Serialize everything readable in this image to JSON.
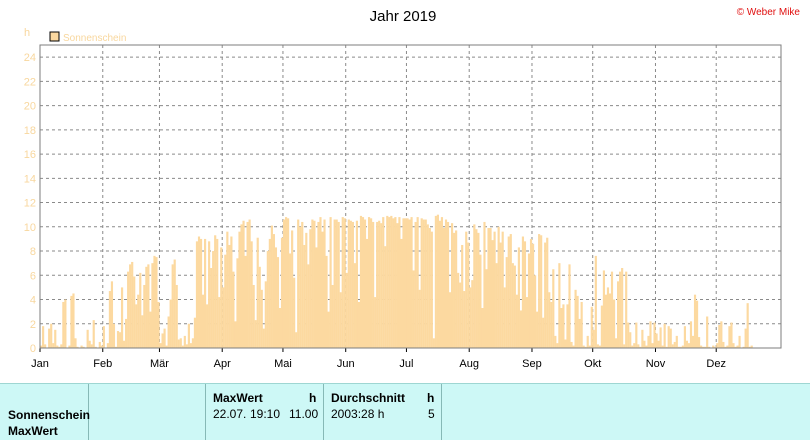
{
  "chart_data": {
    "type": "bar",
    "title": "Jahr 2019",
    "ylabel": "h",
    "credit": "© Weber Mike",
    "legend": {
      "position": "top-left",
      "entries": [
        "Sonnenschein"
      ]
    },
    "ylim": [
      0,
      25
    ],
    "yticks": [
      0,
      2,
      4,
      6,
      8,
      10,
      12,
      14,
      16,
      18,
      20,
      22,
      24
    ],
    "month_labels": [
      "Jan",
      "Feb",
      "Mär",
      "Apr",
      "Mai",
      "Jun",
      "Jul",
      "Aug",
      "Sep",
      "Okt",
      "Nov",
      "Dez"
    ],
    "grid": true,
    "series": [
      {
        "name": "Sonnenschein",
        "color": "#fcd9a0",
        "values": [
          0.2,
          1.8,
          0.3,
          0.0,
          1.6,
          2.0,
          0.4,
          1.5,
          0.2,
          0.1,
          0.3,
          3.8,
          4.0,
          0.0,
          0.2,
          4.3,
          4.5,
          0.8,
          0.1,
          0.0,
          0.2,
          0.1,
          0.0,
          1.5,
          0.6,
          0.3,
          2.3,
          0.1,
          0.0,
          0.5,
          0.2,
          1.8,
          0.0,
          0.4,
          4.7,
          5.5,
          2.0,
          0.1,
          1.4,
          1.3,
          5.0,
          0.6,
          2.4,
          6.3,
          6.9,
          7.1,
          5.9,
          3.6,
          4.4,
          6.2,
          2.7,
          5.2,
          6.7,
          6.9,
          3.0,
          7.0,
          7.6,
          7.5,
          3.8,
          0.4,
          1.2,
          1.6,
          0.2,
          2.6,
          4.0,
          6.9,
          7.3,
          5.2,
          0.7,
          0.8,
          0.2,
          1.0,
          0.3,
          2.0,
          0.4,
          0.8,
          2.5,
          8.8,
          9.2,
          9.0,
          4.4,
          9.0,
          3.6,
          8.8,
          6.6,
          8.0,
          9.3,
          9.0,
          4.2,
          8.3,
          5.0,
          7.7,
          9.6,
          8.5,
          9.2,
          6.3,
          2.2,
          7.4,
          9.6,
          10.2,
          10.5,
          7.6,
          10.4,
          10.6,
          8.8,
          5.2,
          2.3,
          9.1,
          6.7,
          4.8,
          1.6,
          5.5,
          8.0,
          9.0,
          10.1,
          9.4,
          8.3,
          7.5,
          3.3,
          9.1,
          10.6,
          10.8,
          10.7,
          7.8,
          9.7,
          5.8,
          1.3,
          10.6,
          10.0,
          10.4,
          8.5,
          9.5,
          6.9,
          9.8,
          10.6,
          10.5,
          8.3,
          10.4,
          10.8,
          9.6,
          10.6,
          7.6,
          3.0,
          10.8,
          5.2,
          10.6,
          10.6,
          10.4,
          4.6,
          10.8,
          10.7,
          6.2,
          10.6,
          10.5,
          10.4,
          7.0,
          10.5,
          3.8,
          10.9,
          10.8,
          10.6,
          9.0,
          10.8,
          10.7,
          10.4,
          4.2,
          10.4,
          10.5,
          10.3,
          10.8,
          8.4,
          10.9,
          10.8,
          10.9,
          10.7,
          10.8,
          10.3,
          10.8,
          9.0,
          10.7,
          10.7,
          10.7,
          10.6,
          10.8,
          6.4,
          10.4,
          10.8,
          4.8,
          10.7,
          10.6,
          10.6,
          10.2,
          9.9,
          9.6,
          0.8,
          10.9,
          11.0,
          10.5,
          10.8,
          9.9,
          10.6,
          10.4,
          4.6,
          10.3,
          9.5,
          9.7,
          6.2,
          5.4,
          8.5,
          4.7,
          9.6,
          8.7,
          5.0,
          5.6,
          10.2,
          9.8,
          9.5,
          7.7,
          3.3,
          10.4,
          6.5,
          9.9,
          9.9,
          8.9,
          9.6,
          7.0,
          10.0,
          8.7,
          9.6,
          5.0,
          7.5,
          9.2,
          9.4,
          7.0,
          6.8,
          4.4,
          8.3,
          3.1,
          9.2,
          8.8,
          4.2,
          7.8,
          9.0,
          8.6,
          6.0,
          3.0,
          9.4,
          9.3,
          2.5,
          8.7,
          9.1,
          4.6,
          3.8,
          6.5,
          1.0,
          0.4,
          7.0,
          3.3,
          3.6,
          0.7,
          3.6,
          6.9,
          0.5,
          0.2,
          4.8,
          4.3,
          2.4,
          3.8,
          0.2,
          0.1,
          1.0,
          0.2,
          3.4,
          1.5,
          7.6,
          0.3,
          0.2,
          3.5,
          6.4,
          4.4,
          5.0,
          4.5,
          6.3,
          4.0,
          0.8,
          5.5,
          6.3,
          6.6,
          0.3,
          6.3,
          2.1,
          1.3,
          0.2,
          0.4,
          2.1,
          0.3,
          0.1,
          1.5,
          0.6,
          0.2,
          1.0,
          2.2,
          0.4,
          2.1,
          1.2,
          0.6,
          1.7,
          0.2,
          2.0,
          0.1,
          1.8,
          1.6,
          0.3,
          0.5,
          1.0,
          0.1,
          0.1,
          0.2,
          1.8,
          0.6,
          0.4,
          2.2,
          1.0,
          4.4,
          3.9,
          0.9,
          0.2,
          0.1,
          0.1,
          2.6,
          0.1,
          0.0,
          0.2,
          0.1,
          0.4,
          1.9,
          2.2,
          0.5,
          0.1,
          0.2,
          1.8,
          2.1,
          0.4,
          0.1,
          0.2,
          1.0,
          0.0,
          0.1,
          1.6,
          3.7,
          0.1,
          0.2,
          0.0
        ]
      }
    ]
  },
  "stats": {
    "row_labels": [
      "Sonnenschein",
      "MaxWert"
    ],
    "max": {
      "header": "MaxWert",
      "unit": "h",
      "date": "22.07.",
      "time": "19:10",
      "value": "11.00"
    },
    "avg": {
      "header": "Durchschnitt",
      "unit": "h",
      "value": "2003:28 h",
      "count": "5"
    }
  }
}
